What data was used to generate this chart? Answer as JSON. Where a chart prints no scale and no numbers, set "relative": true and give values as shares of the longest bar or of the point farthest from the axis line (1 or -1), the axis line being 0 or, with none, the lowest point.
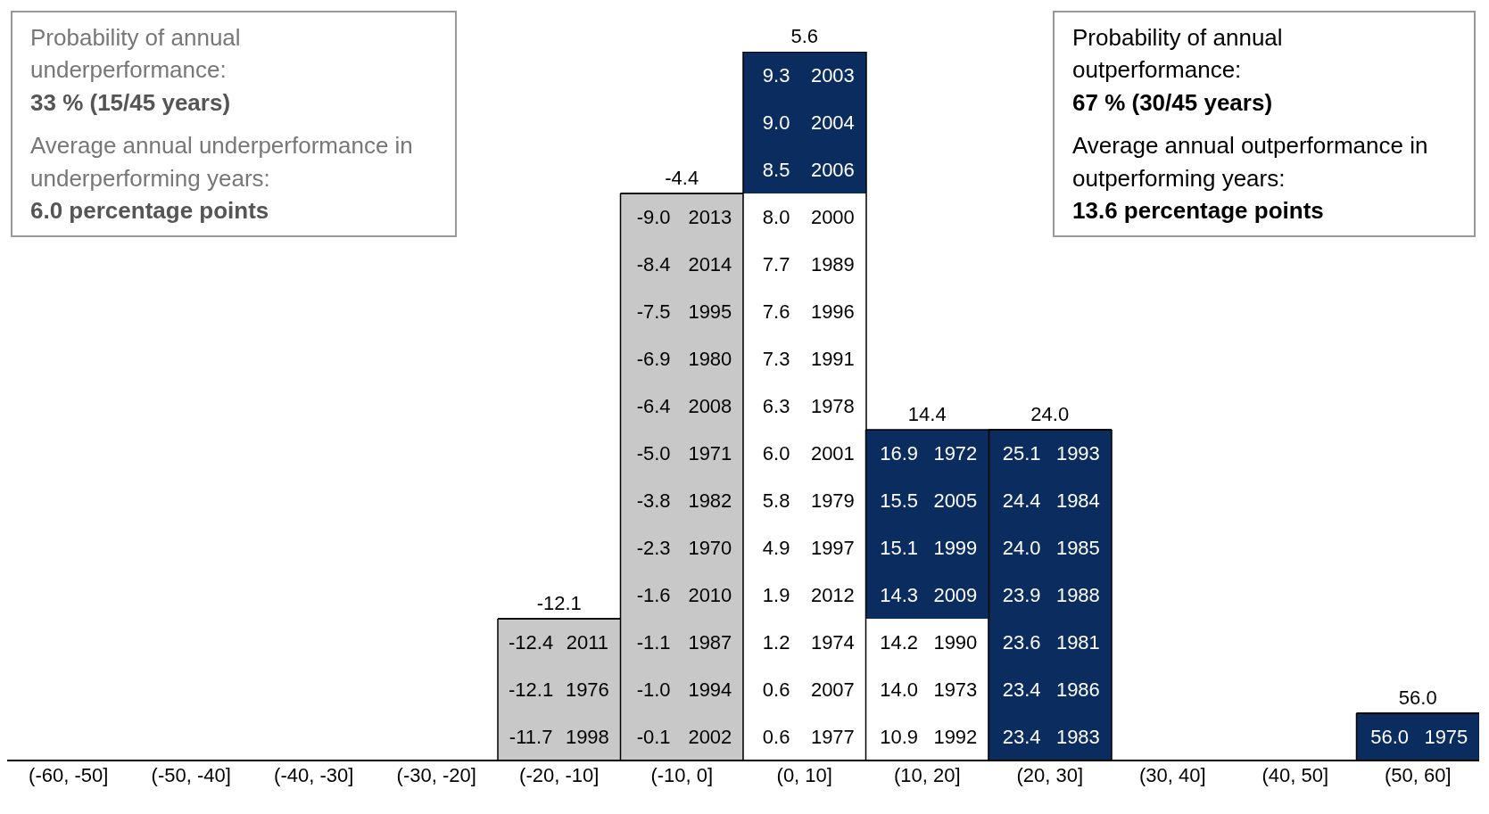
{
  "chart_data": {
    "type": "bar",
    "stacked": true,
    "relative": true,
    "legend": false,
    "grid": false,
    "categories": [
      "(-60, -50]",
      "(-50, -40]",
      "(-40, -30]",
      "(-30, -20]",
      "(-20, -10]",
      "(-10, 0]",
      "(0, 10]",
      "(10, 20]",
      "(20, 30]",
      "(30, 40]",
      "(40, 50]",
      "(50, 60]"
    ],
    "series": [
      {
        "values": [
          null,
          null,
          null,
          null,
          0.2,
          0.8,
          0.8,
          0.2,
          0.4667,
          null,
          null,
          0.0667
        ],
        "colors": [
          null,
          null,
          null,
          null,
          "#c8c8c8",
          "#c8c8c8",
          "#ffffff",
          "#ffffff",
          "#0a2c5e",
          null,
          null,
          "#0a2c5e"
        ]
      },
      {
        "values": [
          null,
          null,
          null,
          null,
          null,
          null,
          0.2,
          0.2667,
          null,
          null,
          null,
          null
        ],
        "colors": [
          null,
          null,
          null,
          null,
          null,
          null,
          "#0a2c5e",
          "#0a2c5e",
          null,
          null,
          null,
          null
        ]
      }
    ],
    "annotations": [
      "Probability of annual underperformance:",
      "33 % (15/45 years)",
      "Average annual underperformance in underperforming years:",
      "6.0 percentage points",
      "Probability of annual outperformance:",
      "67 % (30/45 years)",
      "Average annual outperformance in outperforming years:",
      "13.6 percentage points",
      {
        "text": "-12.1",
        "x": "(-20, -10]",
        "y": 0.2
      },
      {
        "text": "-4.4",
        "x": "(-10, 0]",
        "y": 0.8
      },
      {
        "text": "5.6",
        "x": "(0, 10]",
        "y": 1.0
      },
      {
        "text": "14.4",
        "x": "(10, 20]",
        "y": 0.4667
      },
      {
        "text": "24.0",
        "x": "(20, 30]",
        "y": 0.4667
      },
      {
        "text": "56.0",
        "x": "(50, 60]",
        "y": 0.0667
      },
      "-11.7 1998",
      "-12.1 1976",
      "-12.4 2011",
      "-0.1 2002",
      "-1.0 1994",
      "-1.1 1987",
      "-1.6 2010",
      "-2.3 1970",
      "-3.8 1982",
      "-5.0 1971",
      "-6.4 2008",
      "-6.9 1980",
      "-7.5 1995",
      "-8.4 2014",
      "-9.0 2013",
      "0.6 1977",
      "0.6 2007",
      "1.2 1974",
      "1.9 2012",
      "4.9 1997",
      "5.8 1979",
      "6.0 2001",
      "6.3 1978",
      "7.3 1991",
      "7.6 1996",
      "7.7 1989",
      "8.0 2000",
      "8.5 2006",
      "9.0 2004",
      "9.3 2003",
      "10.9 1992",
      "14.0 1973",
      "14.2 1990",
      "14.3 2009",
      "15.1 1999",
      "15.5 2005",
      "16.9 1972",
      "23.4 1983",
      "23.4 1986",
      "23.6 1981",
      "23.9 1988",
      "24.0 1985",
      "24.4 1984",
      "25.1 1993",
      "56.0 1975"
    ]
  }
}
